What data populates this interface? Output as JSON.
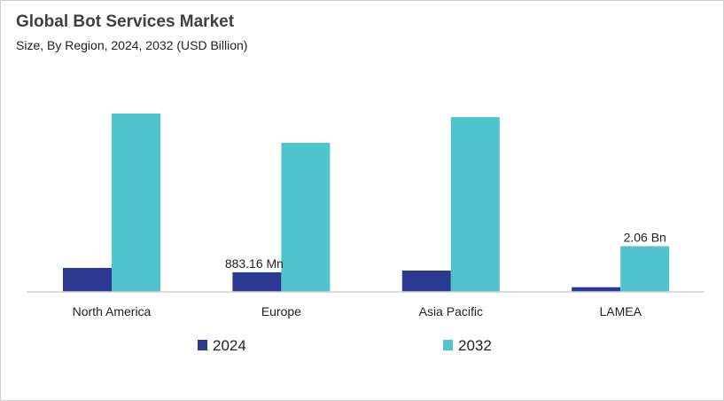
{
  "chart_data": {
    "type": "bar",
    "title": "Global Bot Services Market",
    "subtitle": "Size, By Region, 2024, 2032 (USD Billion)",
    "categories": [
      "North America",
      "Europe",
      "Asia Pacific",
      "LAMEA"
    ],
    "series": [
      {
        "name": "2024",
        "color": "#2b3990",
        "values": [
          1.08,
          0.883,
          0.96,
          0.21
        ]
      },
      {
        "name": "2032",
        "color": "#4fc4cf",
        "values": [
          8.04,
          6.72,
          7.88,
          2.06
        ]
      }
    ],
    "data_labels": [
      {
        "series": 0,
        "category": 1,
        "text": "883.16 Mn"
      },
      {
        "series": 1,
        "category": 3,
        "text": "2.06 Bn"
      }
    ],
    "ylim": [
      0,
      10
    ],
    "grid": false,
    "legend": "bottom"
  }
}
